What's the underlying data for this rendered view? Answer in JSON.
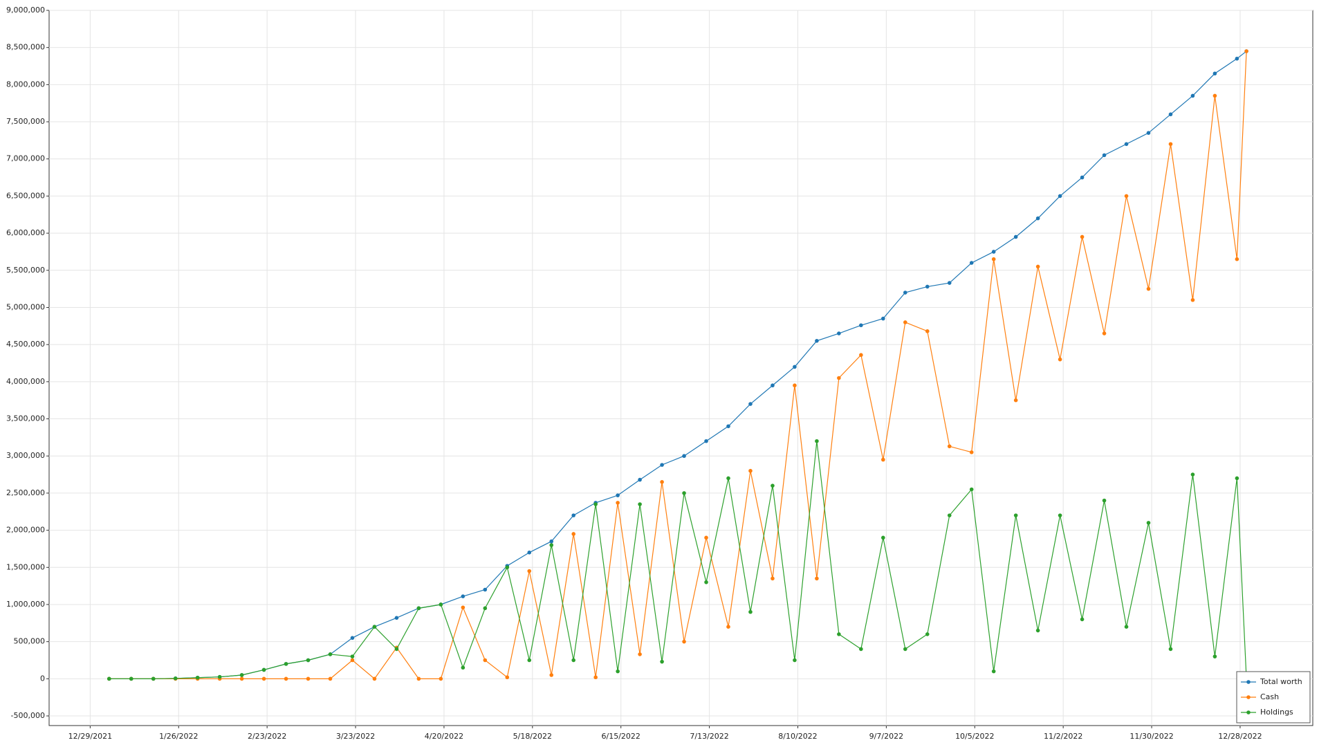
{
  "chart_data": {
    "type": "line",
    "x": [
      "1/4/2022",
      "1/11/2022",
      "1/18/2022",
      "1/25/2022",
      "2/1/2022",
      "2/8/2022",
      "2/15/2022",
      "2/22/2022",
      "3/1/2022",
      "3/8/2022",
      "3/15/2022",
      "3/22/2022",
      "3/29/2022",
      "4/5/2022",
      "4/12/2022",
      "4/19/2022",
      "4/26/2022",
      "5/3/2022",
      "5/10/2022",
      "5/17/2022",
      "5/24/2022",
      "5/31/2022",
      "6/7/2022",
      "6/14/2022",
      "6/21/2022",
      "6/28/2022",
      "7/5/2022",
      "7/12/2022",
      "7/19/2022",
      "7/26/2022",
      "8/2/2022",
      "8/9/2022",
      "8/16/2022",
      "8/23/2022",
      "8/30/2022",
      "9/6/2022",
      "9/13/2022",
      "9/20/2022",
      "9/27/2022",
      "10/4/2022",
      "10/11/2022",
      "10/18/2022",
      "10/25/2022",
      "11/1/2022",
      "11/8/2022",
      "11/15/2022",
      "11/22/2022",
      "11/29/2022",
      "12/6/2022",
      "12/13/2022",
      "12/20/2022",
      "12/27/2022",
      "12/30/2022"
    ],
    "series": [
      {
        "name": "Total worth",
        "color": "#1f77b4",
        "values": [
          0,
          0,
          0,
          5000,
          15000,
          25000,
          50000,
          120000,
          200000,
          250000,
          330000,
          550000,
          700000,
          820000,
          950000,
          1000000,
          1110000,
          1200000,
          1520000,
          1700000,
          1850000,
          2200000,
          2370000,
          2470000,
          2680000,
          2880000,
          3000000,
          3200000,
          3400000,
          3700000,
          3950000,
          4200000,
          4550000,
          4650000,
          4760000,
          4850000,
          5200000,
          5280000,
          5330000,
          5600000,
          5750000,
          5950000,
          6200000,
          6500000,
          6750000,
          7050000,
          7200000,
          7350000,
          7600000,
          7850000,
          8150000,
          8350000,
          8450000
        ]
      },
      {
        "name": "Cash",
        "color": "#ff7f0e",
        "values": [
          0,
          0,
          0,
          0,
          0,
          0,
          0,
          0,
          0,
          0,
          0,
          250000,
          0,
          420000,
          0,
          0,
          960000,
          250000,
          20000,
          1450000,
          50000,
          1950000,
          20000,
          2370000,
          330000,
          2650000,
          500000,
          1900000,
          700000,
          2800000,
          1350000,
          3950000,
          1350000,
          4050000,
          4360000,
          2950000,
          4800000,
          4680000,
          3130000,
          3050000,
          5650000,
          3750000,
          5550000,
          4300000,
          5950000,
          4650000,
          6500000,
          5250000,
          7200000,
          5100000,
          7850000,
          5650000,
          8450000
        ]
      },
      {
        "name": "Holdings",
        "color": "#2ca02c",
        "values": [
          0,
          0,
          0,
          5000,
          15000,
          25000,
          50000,
          120000,
          200000,
          250000,
          330000,
          300000,
          700000,
          400000,
          950000,
          1000000,
          150000,
          950000,
          1500000,
          250000,
          1800000,
          250000,
          2350000,
          100000,
          2350000,
          230000,
          2500000,
          1300000,
          2700000,
          900000,
          2600000,
          250000,
          3200000,
          600000,
          400000,
          1900000,
          400000,
          600000,
          2200000,
          2550000,
          100000,
          2200000,
          650000,
          2200000,
          800000,
          2400000,
          700000,
          2100000,
          400000,
          2750000,
          300000,
          2700000,
          0
        ]
      }
    ],
    "xlim": [
      "12/16/2021",
      "1/20/2023"
    ],
    "xticks": [
      "12/29/2021",
      "1/26/2022",
      "2/23/2022",
      "3/23/2022",
      "4/20/2022",
      "5/18/2022",
      "6/15/2022",
      "7/13/2022",
      "8/10/2022",
      "9/7/2022",
      "10/5/2022",
      "11/2/2022",
      "11/30/2022",
      "12/28/2022"
    ],
    "ylim": [
      -630000,
      9000000
    ],
    "yticks": [
      {
        "value": -500000,
        "label": "-500,000"
      },
      0,
      {
        "value": 500000,
        "label": "500,000"
      },
      {
        "value": 1000000,
        "label": "1,000,000"
      },
      {
        "value": 1500000,
        "label": "1,500,000"
      },
      {
        "value": 2000000,
        "label": "2,000,000"
      },
      {
        "value": 2500000,
        "label": "2,500,000"
      },
      {
        "value": 3000000,
        "label": "3,000,000"
      },
      {
        "value": 3500000,
        "label": "3,500,000"
      },
      {
        "value": 4000000,
        "label": "4,000,000"
      },
      {
        "value": 4500000,
        "label": "4,500,000"
      },
      {
        "value": 5000000,
        "label": "5,000,000"
      },
      {
        "value": 5500000,
        "label": "5,500,000"
      },
      {
        "value": 6000000,
        "label": "6,000,000"
      },
      {
        "value": 6500000,
        "label": "6,500,000"
      },
      {
        "value": 7000000,
        "label": "7,000,000"
      },
      {
        "value": 7500000,
        "label": "7,500,000"
      },
      {
        "value": 8000000,
        "label": "8,000,000"
      },
      {
        "value": 8500000,
        "label": "8,500,000"
      },
      {
        "value": 9000000,
        "label": "9,000,000"
      }
    ],
    "grid": true,
    "legend": "lower right"
  }
}
